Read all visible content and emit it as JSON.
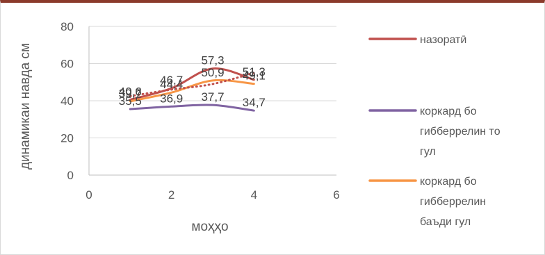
{
  "chart_data": {
    "type": "line",
    "xlabel": "моҳҳо",
    "ylabel": "динамикаи навда см",
    "xlim": [
      0,
      6
    ],
    "ylim": [
      0,
      80
    ],
    "xticks": [
      "0",
      "2",
      "4",
      "6"
    ],
    "yticks": [
      "0",
      "20",
      "40",
      "60",
      "80"
    ],
    "grid": "horizontal",
    "legend_position": "right",
    "series": [
      {
        "name": "назоратӣ",
        "color": "#c0504d",
        "style": "solid",
        "x": [
          1,
          2,
          3,
          4
        ],
        "values": [
          40.6,
          46.7,
          57.3,
          51.3
        ],
        "labels": [
          "40,6",
          "46,7",
          "57,3",
          "51,3"
        ]
      },
      {
        "name": "коркард бо гибберрелин то гул",
        "color": "#8064a2",
        "style": "solid",
        "x": [
          1,
          2,
          3,
          4
        ],
        "values": [
          35.5,
          36.9,
          37.7,
          34.7
        ],
        "labels": [
          "35,5",
          "36,9",
          "37,7",
          "34,7"
        ]
      },
      {
        "name": "коркард бо гибберрелин баъди гул",
        "color": "#f79646",
        "style": "solid",
        "x": [
          1,
          2,
          3,
          4
        ],
        "values": [
          39.7,
          44.4,
          50.9,
          49.1
        ],
        "labels": [
          "39,7",
          "44,4",
          "50,9",
          "49,1"
        ]
      },
      {
        "name": "",
        "color": "#c0504d",
        "style": "dotted",
        "x": [
          1,
          2,
          3,
          4
        ],
        "values": [
          42.5,
          46.0,
          49.0,
          55.0
        ],
        "labels": []
      }
    ],
    "legend": [
      {
        "lines": [
          "назоратӣ"
        ],
        "color": "#c0504d"
      },
      {
        "lines": [
          "коркард бо",
          "гибберрелин то",
          "гул"
        ],
        "color": "#8064a2"
      },
      {
        "lines": [
          "коркард бо",
          "гибберрелин",
          "баъди гул"
        ],
        "color": "#f79646"
      }
    ]
  }
}
